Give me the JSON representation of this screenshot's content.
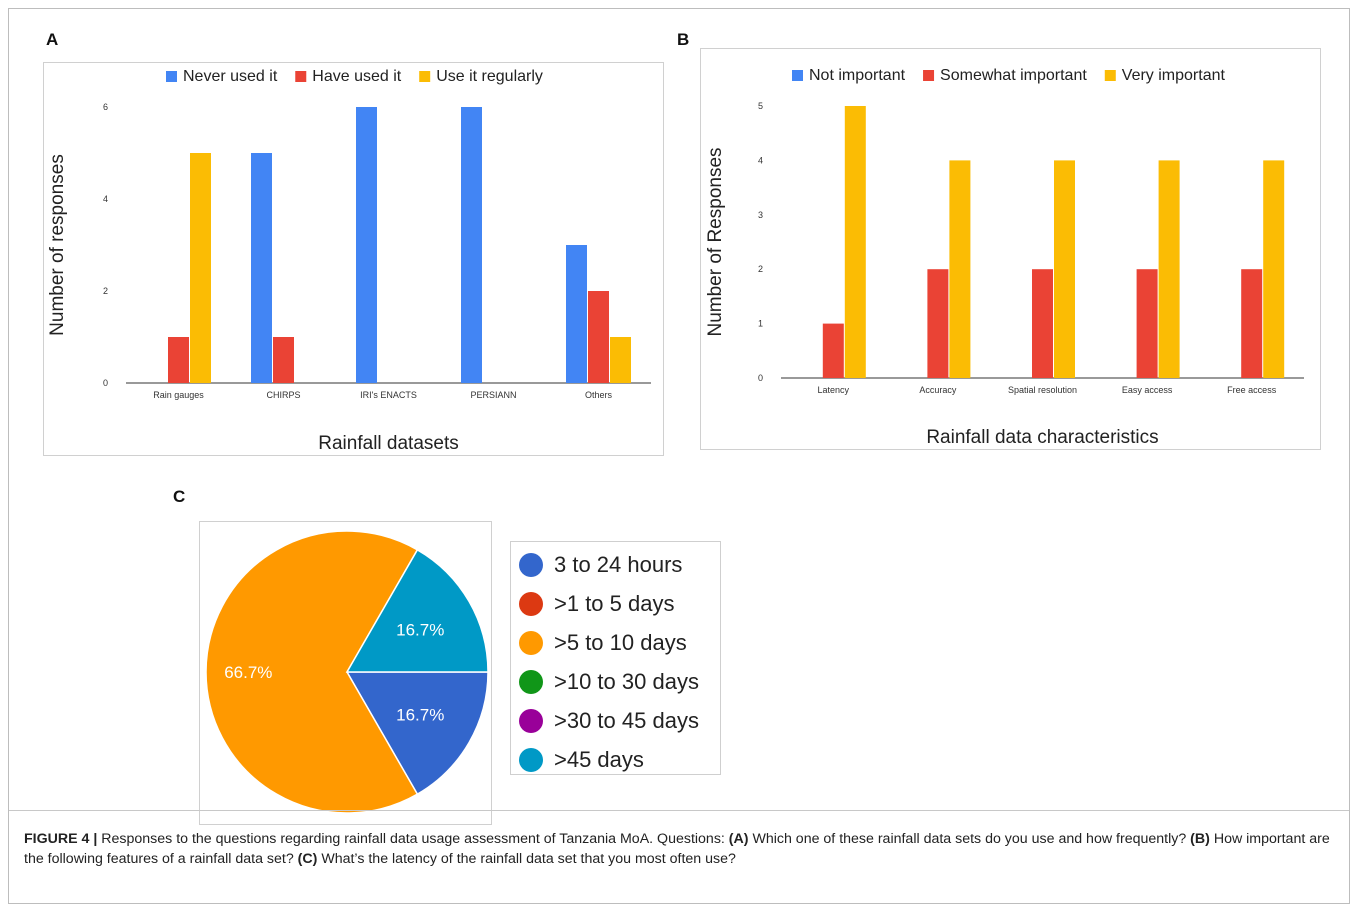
{
  "panels": [
    {
      "letter": "A"
    },
    {
      "letter": "B"
    },
    {
      "letter": "C"
    }
  ],
  "chart_data": [
    {
      "id": "A",
      "type": "bar",
      "title": "",
      "xlabel": "Rainfall datasets",
      "ylabel": "Number of responses",
      "categories": [
        "Rain gauges",
        "CHIRPS",
        "IRI's ENACTS",
        "PERSIANN",
        "Others"
      ],
      "series": [
        {
          "name": "Never used it",
          "color": "#4285f4",
          "values": [
            0,
            5,
            6,
            6,
            3
          ]
        },
        {
          "name": "Have used it",
          "color": "#ea4335",
          "values": [
            1,
            1,
            0,
            0,
            2
          ]
        },
        {
          "name": "Use it regularly",
          "color": "#fbbc04",
          "values": [
            5,
            0,
            0,
            0,
            1
          ]
        }
      ],
      "ylim": [
        0,
        6
      ],
      "yticks": [
        0,
        2,
        4,
        6
      ],
      "legend": "top",
      "grid": false
    },
    {
      "id": "B",
      "type": "bar",
      "title": "",
      "xlabel": "Rainfall data characteristics",
      "ylabel": "Number of Responses",
      "categories": [
        "Latency",
        "Accuracy",
        "Spatial resolution",
        "Easy access",
        "Free access"
      ],
      "series": [
        {
          "name": "Not important",
          "color": "#4285f4",
          "values": [
            0,
            0,
            0,
            0,
            0
          ]
        },
        {
          "name": "Somewhat important",
          "color": "#ea4335",
          "values": [
            1,
            2,
            2,
            2,
            2
          ]
        },
        {
          "name": "Very important",
          "color": "#fbbc04",
          "values": [
            5,
            4,
            4,
            4,
            4
          ]
        }
      ],
      "ylim": [
        0,
        5
      ],
      "yticks": [
        0,
        1,
        2,
        3,
        4,
        5
      ],
      "legend": "top",
      "grid": false
    },
    {
      "id": "C",
      "type": "pie",
      "title": "",
      "slices": [
        {
          "label": "3 to 24 hours",
          "value": 16.7,
          "display": "16.7%",
          "color": "#3366cc"
        },
        {
          "label": ">1 to 5 days",
          "value": 0,
          "display": "",
          "color": "#dc3912"
        },
        {
          "label": ">5 to 10 days",
          "value": 66.7,
          "display": "66.7%",
          "color": "#ff9900"
        },
        {
          "label": ">10 to 30 days",
          "value": 0,
          "display": "",
          "color": "#109618"
        },
        {
          "label": ">30 to 45 days",
          "value": 0,
          "display": "",
          "color": "#990099"
        },
        {
          "label": ">45 days",
          "value": 16.7,
          "display": "16.7%",
          "color": "#0099c6"
        }
      ],
      "legend": "right"
    }
  ],
  "caption": {
    "figure_label": "FIGURE 4 |",
    "text1": " Responses to the questions regarding rainfall data usage assessment of Tanzania MoA. Questions: ",
    "qa_label": "(A)",
    "qa_text": " Which one of these rainfall data sets do you use and how frequently? ",
    "qb_label": "(B)",
    "qb_text": " How important are the following features of a rainfall data set? ",
    "qc_label": "(C)",
    "qc_text": " What’s the latency of the rainfall data set that you most often use?"
  }
}
